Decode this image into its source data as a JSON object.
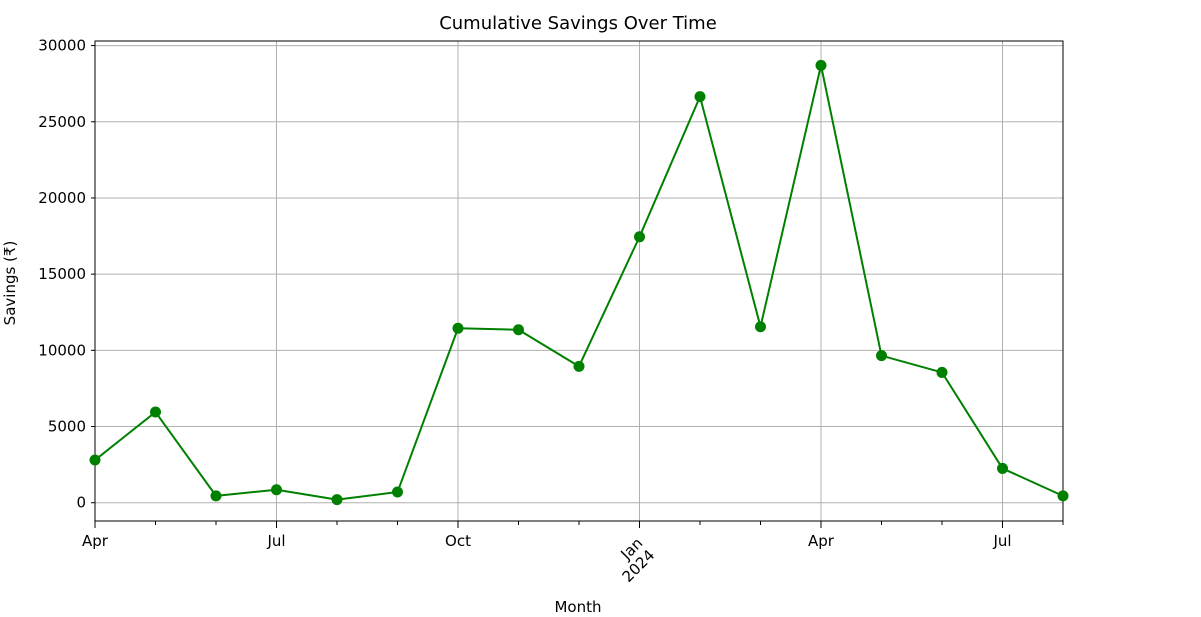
{
  "chart_data": {
    "type": "line",
    "title": "Cumulative Savings Over Time",
    "xlabel": "Month",
    "ylabel": "Savings (₹)",
    "x": [
      "2023-04",
      "2023-05",
      "2023-06",
      "2023-07",
      "2023-08",
      "2023-09",
      "2023-10",
      "2023-11",
      "2023-12",
      "2024-01",
      "2024-02",
      "2024-03",
      "2024-04",
      "2024-05",
      "2024-06",
      "2024-07",
      "2024-08"
    ],
    "series": [
      {
        "values": [
          2800,
          5950,
          450,
          850,
          200,
          700,
          11450,
          11350,
          8950,
          17450,
          26650,
          11550,
          28700,
          9650,
          8550,
          2250,
          450
        ]
      }
    ],
    "ylim": [
      -1200,
      30300
    ],
    "yticks": [
      0,
      5000,
      10000,
      15000,
      20000,
      25000,
      30000
    ],
    "ytick_labels": [
      "0",
      "5000",
      "10000",
      "15000",
      "20000",
      "25000",
      "30000"
    ],
    "xtick_labels": [
      {
        "x": "2023-04",
        "label": "Apr"
      },
      {
        "x": "2023-07",
        "label": "Jul"
      },
      {
        "x": "2023-10",
        "label": "Oct"
      },
      {
        "x": "2024-01",
        "label": "Jan\n2024",
        "rotated": true
      },
      {
        "x": "2024-04",
        "label": "Apr"
      },
      {
        "x": "2024-07",
        "label": "Jul"
      }
    ],
    "grid": true,
    "color": "#008000",
    "marker": "circle"
  }
}
